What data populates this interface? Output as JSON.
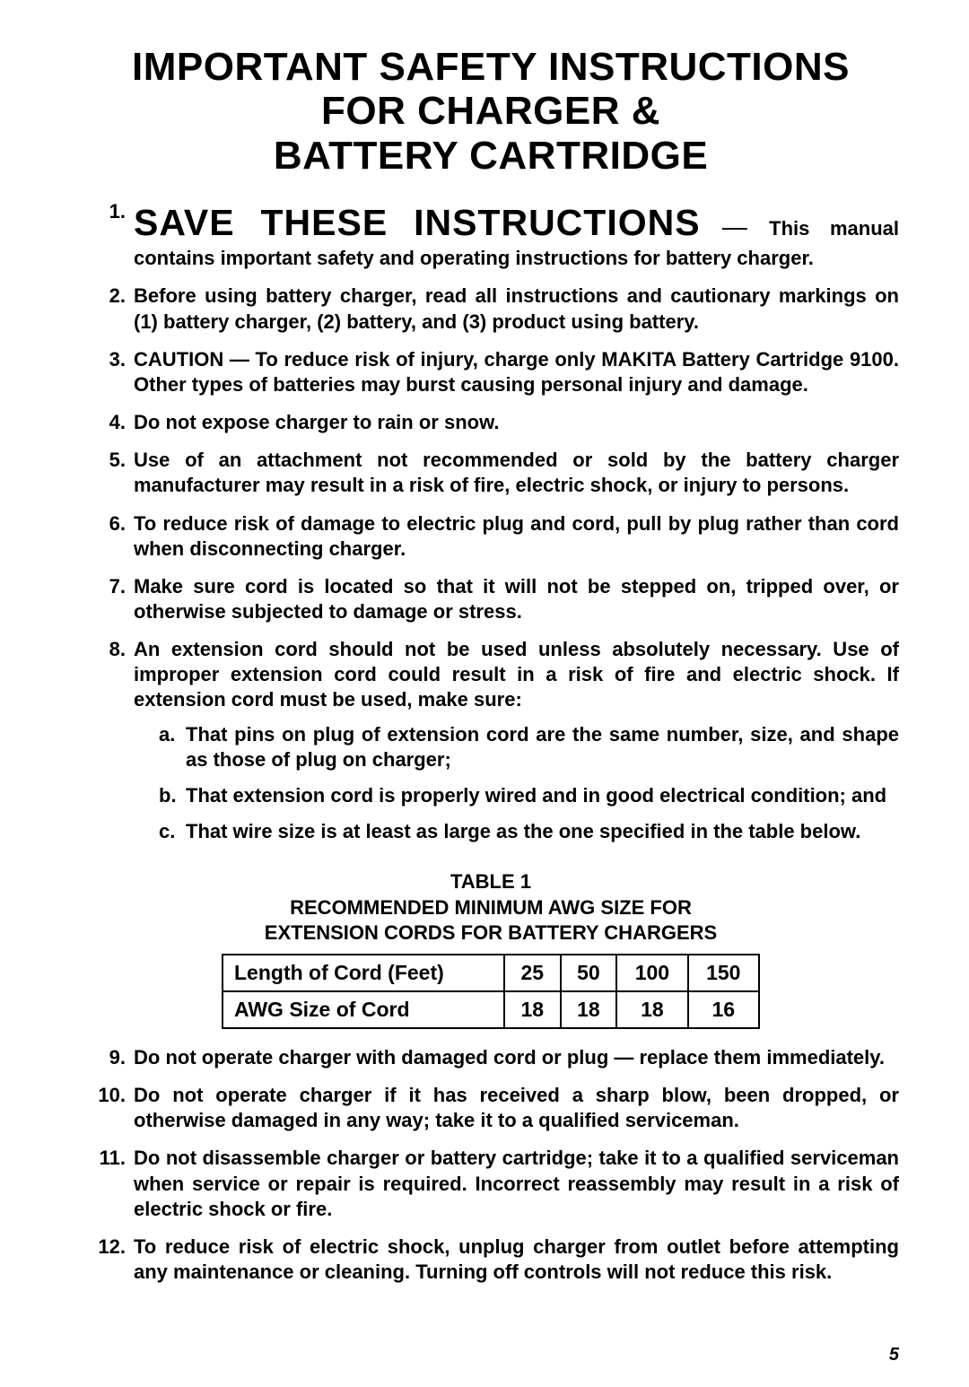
{
  "title_lines": [
    "IMPORTANT SAFETY INSTRUCTIONS",
    "FOR CHARGER &",
    "BATTERY CARTRIDGE"
  ],
  "items": [
    {
      "num": "1.",
      "strong": "SAVE THESE INSTRUCTIONS",
      "dash": " — ",
      "rest": "This manual contains important safety and operating instructions for battery charger."
    },
    {
      "num": "2.",
      "text": "Before using battery charger, read all instructions and cautionary markings on (1) battery charger, (2) battery, and (3) product using battery."
    },
    {
      "num": "3.",
      "text": "CAUTION — To reduce risk of injury, charge only MAKITA Battery Cartridge 9100. Other types of batteries may burst causing personal injury and damage."
    },
    {
      "num": "4.",
      "text": "Do not expose charger to rain or snow."
    },
    {
      "num": "5.",
      "text": "Use of an attachment not recommended or sold by the battery charger manufacturer may result in a risk of fire, electric shock, or injury to persons."
    },
    {
      "num": "6.",
      "text": "To reduce risk of damage to electric plug and cord, pull by plug rather than cord when disconnecting charger."
    },
    {
      "num": "7.",
      "text": "Make sure cord is located so that it will not be stepped on, tripped over, or otherwise subjected to damage or stress."
    },
    {
      "num": "8.",
      "text": "An extension cord should not be used unless absolutely necessary. Use of improper extension cord could result in a risk of fire and electric shock. If extension cord must be used, make sure:",
      "sub": [
        {
          "snum": "a.",
          "stext": "That pins on plug of extension cord are the same number, size, and shape as those of plug on charger;"
        },
        {
          "snum": "b.",
          "stext": "That extension cord is properly wired and in good electrical condition; and"
        },
        {
          "snum": "c.",
          "stext": "That wire size is at least as large as the one specified in the table below."
        }
      ]
    },
    {
      "num": "9.",
      "text": "Do not operate charger with damaged cord or plug — replace them immediately."
    },
    {
      "num": "10.",
      "text": "Do not operate charger if it has received a sharp blow, been dropped, or otherwise damaged in any way; take it to a qualified serviceman."
    },
    {
      "num": "11.",
      "text": "Do not disassemble charger or battery cartridge; take it to a qualified serviceman when service or repair is required. Incorrect reassembly may result in a risk of electric shock or fire."
    },
    {
      "num": "12.",
      "text": "To reduce risk of electric shock, unplug charger from outlet before attempting any maintenance or cleaning. Turning off controls will not reduce this risk."
    }
  ],
  "table": {
    "caption_lines": [
      "TABLE 1",
      "RECOMMENDED MINIMUM AWG SIZE FOR",
      "EXTENSION CORDS FOR BATTERY CHARGERS"
    ],
    "row_label_1": "Length of Cord (Feet)",
    "row_label_2": "AWG Size of Cord",
    "lengths": [
      "25",
      "50",
      "100",
      "150"
    ],
    "awg": [
      "18",
      "18",
      "18",
      "16"
    ]
  },
  "page_number": "5"
}
